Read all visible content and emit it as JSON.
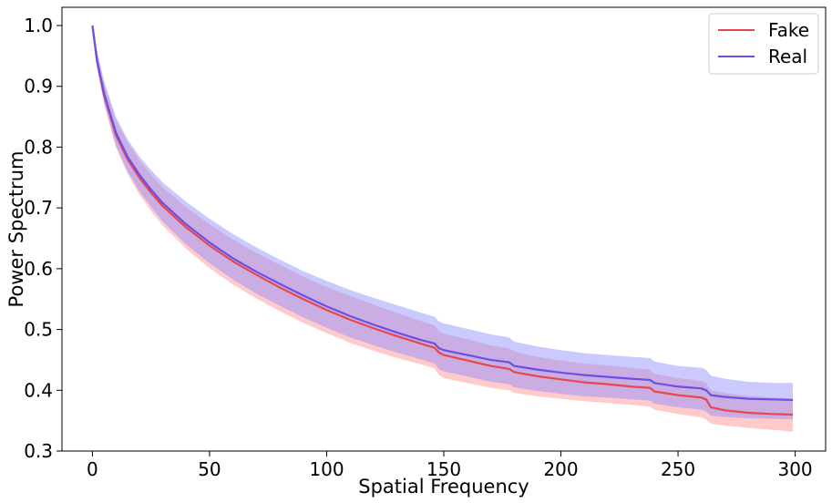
{
  "chart_data": {
    "type": "line",
    "xlabel": "Spatial Frequency",
    "ylabel": "Power Spectrum",
    "xlim": [
      -13,
      313
    ],
    "ylim": [
      0.3,
      1.03
    ],
    "xticks": [
      0,
      50,
      100,
      150,
      200,
      250,
      300
    ],
    "yticks": [
      0.3,
      0.4,
      0.5,
      0.6,
      0.7,
      0.8,
      0.9,
      1.0
    ],
    "xtick_labels": [
      "0",
      "50",
      "100",
      "150",
      "200",
      "250",
      "300"
    ],
    "ytick_labels": [
      "0.3",
      "0.4",
      "0.5",
      "0.6",
      "0.7",
      "0.8",
      "0.9",
      "1.0"
    ],
    "grid": false,
    "legend_position": "top-right",
    "x": [
      0,
      2,
      5,
      10,
      15,
      20,
      25,
      30,
      40,
      50,
      60,
      70,
      80,
      90,
      100,
      110,
      120,
      130,
      140,
      146,
      148,
      150,
      160,
      170,
      178,
      180,
      190,
      200,
      210,
      220,
      230,
      238,
      240,
      250,
      260,
      262,
      264,
      270,
      280,
      290,
      299
    ],
    "series": [
      {
        "name": "Fake",
        "color": "#e8474d",
        "fill_color": "#ff8a8a",
        "fill_opacity": 0.45,
        "values": [
          1.0,
          0.94,
          0.885,
          0.82,
          0.78,
          0.75,
          0.725,
          0.703,
          0.668,
          0.638,
          0.612,
          0.59,
          0.569,
          0.55,
          0.532,
          0.516,
          0.502,
          0.489,
          0.477,
          0.47,
          0.462,
          0.458,
          0.449,
          0.44,
          0.435,
          0.43,
          0.423,
          0.418,
          0.413,
          0.41,
          0.406,
          0.404,
          0.398,
          0.392,
          0.388,
          0.385,
          0.372,
          0.367,
          0.363,
          0.361,
          0.36
        ],
        "lower": [
          1.0,
          0.93,
          0.87,
          0.8,
          0.756,
          0.722,
          0.695,
          0.671,
          0.633,
          0.601,
          0.574,
          0.551,
          0.53,
          0.511,
          0.494,
          0.478,
          0.465,
          0.453,
          0.443,
          0.436,
          0.425,
          0.42,
          0.412,
          0.404,
          0.4,
          0.396,
          0.39,
          0.386,
          0.382,
          0.379,
          0.376,
          0.373,
          0.368,
          0.361,
          0.355,
          0.352,
          0.345,
          0.342,
          0.338,
          0.335,
          0.332
        ],
        "upper": [
          1.0,
          0.955,
          0.905,
          0.845,
          0.808,
          0.779,
          0.755,
          0.734,
          0.701,
          0.673,
          0.648,
          0.626,
          0.606,
          0.587,
          0.57,
          0.555,
          0.541,
          0.527,
          0.514,
          0.507,
          0.497,
          0.493,
          0.484,
          0.474,
          0.469,
          0.464,
          0.455,
          0.449,
          0.444,
          0.441,
          0.437,
          0.434,
          0.427,
          0.42,
          0.415,
          0.412,
          0.4,
          0.395,
          0.391,
          0.388,
          0.387
        ]
      },
      {
        "name": "Real",
        "color": "#6b4fe6",
        "fill_color": "#8a8aff",
        "fill_opacity": 0.45,
        "values": [
          1.0,
          0.942,
          0.888,
          0.824,
          0.784,
          0.755,
          0.73,
          0.708,
          0.673,
          0.643,
          0.617,
          0.595,
          0.575,
          0.556,
          0.538,
          0.522,
          0.508,
          0.495,
          0.483,
          0.477,
          0.469,
          0.466,
          0.458,
          0.45,
          0.446,
          0.44,
          0.434,
          0.429,
          0.425,
          0.422,
          0.419,
          0.417,
          0.412,
          0.406,
          0.403,
          0.4,
          0.392,
          0.389,
          0.386,
          0.385,
          0.384
        ],
        "lower": [
          1.0,
          0.932,
          0.873,
          0.803,
          0.76,
          0.728,
          0.702,
          0.678,
          0.64,
          0.609,
          0.582,
          0.559,
          0.539,
          0.52,
          0.503,
          0.487,
          0.474,
          0.462,
          0.451,
          0.444,
          0.435,
          0.431,
          0.423,
          0.414,
          0.41,
          0.405,
          0.399,
          0.394,
          0.39,
          0.388,
          0.385,
          0.383,
          0.378,
          0.372,
          0.368,
          0.365,
          0.358,
          0.356,
          0.354,
          0.353,
          0.352
        ],
        "upper": [
          1.0,
          0.958,
          0.908,
          0.85,
          0.813,
          0.785,
          0.762,
          0.742,
          0.71,
          0.682,
          0.657,
          0.635,
          0.615,
          0.596,
          0.58,
          0.565,
          0.552,
          0.54,
          0.528,
          0.521,
          0.513,
          0.51,
          0.501,
          0.492,
          0.487,
          0.48,
          0.472,
          0.466,
          0.461,
          0.458,
          0.455,
          0.453,
          0.447,
          0.44,
          0.437,
          0.434,
          0.424,
          0.419,
          0.414,
          0.412,
          0.412
        ]
      }
    ]
  }
}
